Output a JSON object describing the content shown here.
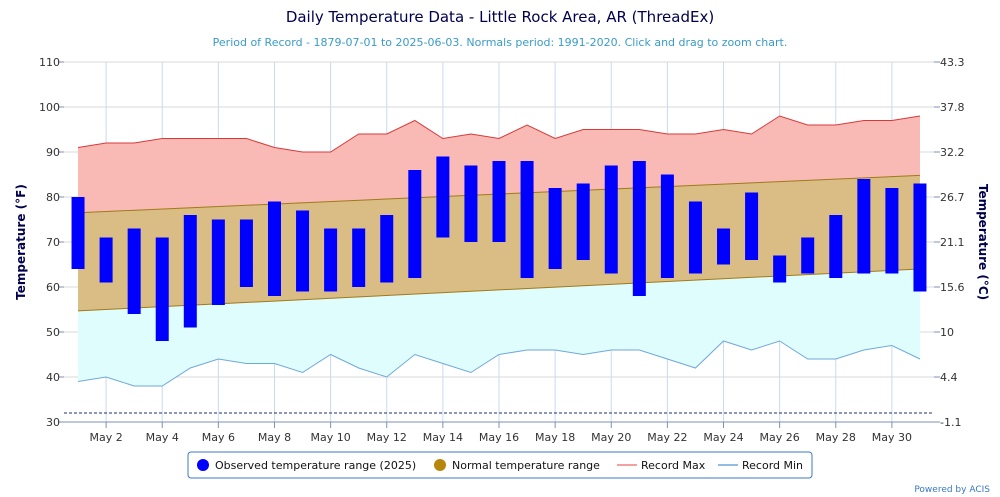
{
  "chart_data": {
    "type": "bar",
    "title": "Daily Temperature Data - Little Rock Area, AR (ThreadEx)",
    "subtitle": "Period of Record - 1879-07-01 to 2025-06-03. Normals period: 1991-2020. Click and drag to zoom chart.",
    "ylabel": "Temperature (°F)",
    "ylabel_right": "Temperature (°C)",
    "ylim": [
      30,
      110
    ],
    "grid": true,
    "legend_position": "bottom",
    "y_ticks": [
      30,
      40,
      50,
      60,
      70,
      80,
      90,
      100,
      110
    ],
    "y_ticks_right": [
      "-1.1",
      "4.4",
      "10",
      "15.6",
      "21.1",
      "26.7",
      "32.2",
      "37.8",
      "43.3"
    ],
    "x_tick_days": [
      2,
      4,
      6,
      8,
      10,
      12,
      14,
      16,
      18,
      20,
      22,
      24,
      26,
      28,
      30
    ],
    "x_tick_labels": [
      "May 2",
      "May 4",
      "May 6",
      "May 8",
      "May 10",
      "May 12",
      "May 14",
      "May 16",
      "May 18",
      "May 20",
      "May 22",
      "May 24",
      "May 26",
      "May 28",
      "May 30"
    ],
    "days": [
      1,
      2,
      3,
      4,
      5,
      6,
      7,
      8,
      9,
      10,
      11,
      12,
      13,
      14,
      15,
      16,
      17,
      18,
      19,
      20,
      21,
      22,
      23,
      24,
      25,
      26,
      27,
      28,
      29,
      30,
      31
    ],
    "reference_line": 32,
    "series": [
      {
        "name": "Observed temperature range (2025)",
        "type": "columnrange",
        "color": "#0000ff",
        "low": [
          64,
          61,
          54,
          48,
          51,
          56,
          60,
          58,
          59,
          59,
          60,
          61,
          62,
          71,
          70,
          70,
          62,
          64,
          66,
          63,
          58,
          62,
          63,
          65,
          66,
          61,
          63,
          62,
          63,
          63,
          59
        ],
        "high": [
          80,
          71,
          73,
          71,
          76,
          75,
          75,
          79,
          77,
          73,
          73,
          76,
          86,
          89,
          87,
          88,
          88,
          82,
          83,
          87,
          88,
          85,
          79,
          73,
          81,
          67,
          71,
          76,
          84,
          82,
          83
        ]
      },
      {
        "name": "Normal temperature range",
        "type": "arearange",
        "color": "#b8860b",
        "low_start": 54.7,
        "low_end": 64.0,
        "high_start": 76.5,
        "high_end": 84.8
      },
      {
        "name": "Record Max",
        "type": "line",
        "color": "#f08080",
        "values": [
          91,
          92,
          92,
          93,
          93,
          93,
          93,
          91,
          90,
          90,
          94,
          94,
          97,
          93,
          94,
          93,
          96,
          93,
          95,
          95,
          95,
          94,
          94,
          95,
          94,
          98,
          96,
          96,
          97,
          97,
          98
        ]
      },
      {
        "name": "Record Min",
        "type": "line",
        "color": "#6fa8dc",
        "values": [
          39,
          40,
          38,
          38,
          42,
          44,
          43,
          43,
          41,
          45,
          42,
          40,
          45,
          43,
          41,
          45,
          46,
          46,
          45,
          46,
          46,
          44,
          42,
          48,
          46,
          48,
          44,
          44,
          46,
          47,
          44
        ]
      }
    ],
    "credits": "Powered by ACIS"
  }
}
